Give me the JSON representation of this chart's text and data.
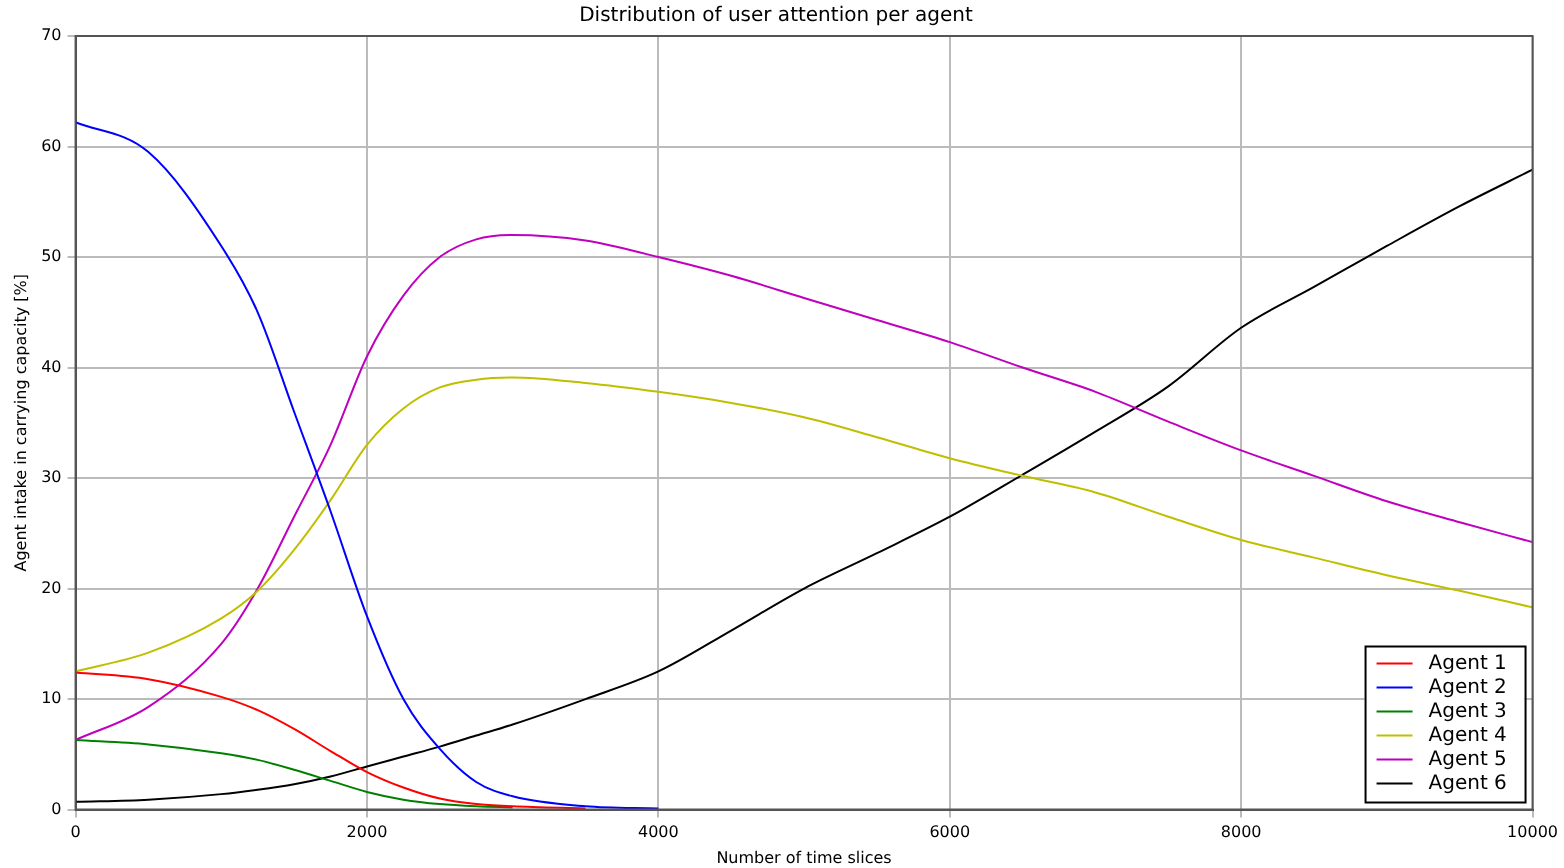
{
  "chart_data": {
    "type": "line",
    "title": "Distribution of user attention per agent",
    "xlabel": "Number of time slices",
    "ylabel": "Agent intake in carrying capacity [%]",
    "x": [
      0,
      500,
      1000,
      1250,
      1500,
      1750,
      2000,
      2250,
      2500,
      2750,
      3000,
      3500,
      4000,
      4500,
      5000,
      5500,
      6000,
      6500,
      7000,
      7500,
      8000,
      8500,
      9000,
      9500,
      10000
    ],
    "series": [
      {
        "name": "Agent 1",
        "color": "#ff0000",
        "values": [
          12.4,
          11.8,
          10.2,
          9,
          7.3,
          5.3,
          3.4,
          2,
          1,
          0.5,
          0.3,
          0.1,
          null,
          null,
          null,
          null,
          null,
          null,
          null,
          null,
          null,
          null,
          null,
          null,
          null
        ]
      },
      {
        "name": "Agent 2",
        "color": "#0000ff",
        "values": [
          62.2,
          59.5,
          51,
          45,
          36,
          27,
          17.5,
          10,
          5.5,
          2.5,
          1.2,
          0.3,
          0.1,
          null,
          null,
          null,
          null,
          null,
          null,
          null,
          null,
          null,
          null,
          null,
          null
        ]
      },
      {
        "name": "Agent 3",
        "color": "#008000",
        "values": [
          6.3,
          5.9,
          5.1,
          4.5,
          3.6,
          2.6,
          1.6,
          0.9,
          0.5,
          0.3,
          0.2,
          null,
          null,
          null,
          null,
          null,
          null,
          null,
          null,
          null,
          null,
          null,
          null,
          null,
          null
        ]
      },
      {
        "name": "Agent 4",
        "color": "#bfbf00",
        "values": [
          12.5,
          14.2,
          17.3,
          19.8,
          23.5,
          28,
          33,
          36.3,
          38.2,
          38.9,
          39.1,
          38.6,
          37.8,
          36.8,
          35.5,
          33.7,
          31.8,
          30.2,
          28.7,
          26.5,
          24.4,
          22.8,
          21.2,
          19.8,
          18.3
        ]
      },
      {
        "name": "Agent 5",
        "color": "#bf00bf",
        "values": [
          6.3,
          9.3,
          15,
          20,
          26.5,
          33,
          41,
          46.5,
          50,
          51.6,
          52,
          51.5,
          50,
          48.3,
          46.3,
          44.3,
          42.3,
          40,
          37.8,
          35.1,
          32.5,
          30.2,
          27.9,
          26,
          24.2
        ]
      },
      {
        "name": "Agent 6",
        "color": "#000000",
        "values": [
          0.7,
          0.9,
          1.4,
          1.8,
          2.3,
          3,
          3.9,
          4.8,
          5.7,
          6.7,
          7.7,
          10,
          12.5,
          16.2,
          20,
          23.2,
          26.5,
          30.3,
          34.2,
          38.3,
          43.6,
          47.3,
          51,
          54.6,
          57.9
        ]
      }
    ],
    "xlim": [
      0,
      10000
    ],
    "xticks": [
      0,
      2000,
      4000,
      6000,
      8000,
      10000
    ],
    "ylim": [
      0,
      70
    ],
    "yticks": [
      0,
      10,
      20,
      30,
      40,
      50,
      60,
      70
    ],
    "grid": true,
    "legend": "bottom right",
    "marker": "none",
    "line_style": "solid"
  }
}
